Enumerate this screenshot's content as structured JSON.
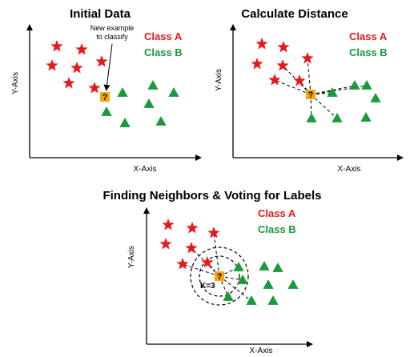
{
  "colors": {
    "class_a": "#e8191a",
    "class_b": "#1a9a3a",
    "query": "#f5a800"
  },
  "panels": {
    "initial": {
      "title": "Initial Data",
      "xlabel": "X-Axis",
      "ylabel": "Y-Axis",
      "legend": {
        "a": "Class A",
        "b": "Class B"
      },
      "annotation_line1": "New example",
      "annotation_line2": "to classify",
      "query_symbol": "?"
    },
    "distance": {
      "title": "Calculate Distance",
      "xlabel": "X-Axis",
      "ylabel": "Y-Axis",
      "legend": {
        "a": "Class A",
        "b": "Class B"
      },
      "query_symbol": "?"
    },
    "voting": {
      "title": "Finding Neighbors & Voting for Labels",
      "xlabel": "X-Axis",
      "ylabel": "Y-Axis",
      "legend": {
        "a": "Class A",
        "b": "Class B"
      },
      "k_label": "K=3",
      "query_symbol": "?"
    }
  }
}
